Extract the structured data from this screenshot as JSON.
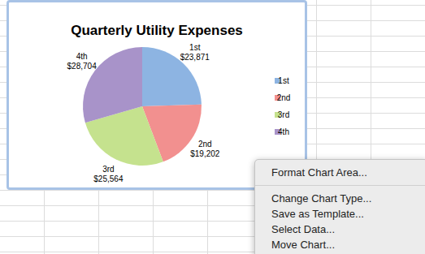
{
  "chart_data": {
    "type": "pie",
    "title": "Quarterly Utility Expenses",
    "categories": [
      "1st",
      "2nd",
      "3rd",
      "4th"
    ],
    "values": [
      23871,
      19202,
      25564,
      28704
    ],
    "value_labels": [
      "$23,871",
      "$19,202",
      "$25,564",
      "$28,704"
    ],
    "colors": [
      "#8db4e2",
      "#f2908f",
      "#c5e28e",
      "#a893c9"
    ],
    "data_labels": true,
    "legend": "right"
  },
  "context_menu": {
    "groups": [
      [
        "Format Chart Area..."
      ],
      [
        "Change Chart Type...",
        "Save as Template...",
        "Select Data...",
        "Move Chart..."
      ]
    ]
  }
}
